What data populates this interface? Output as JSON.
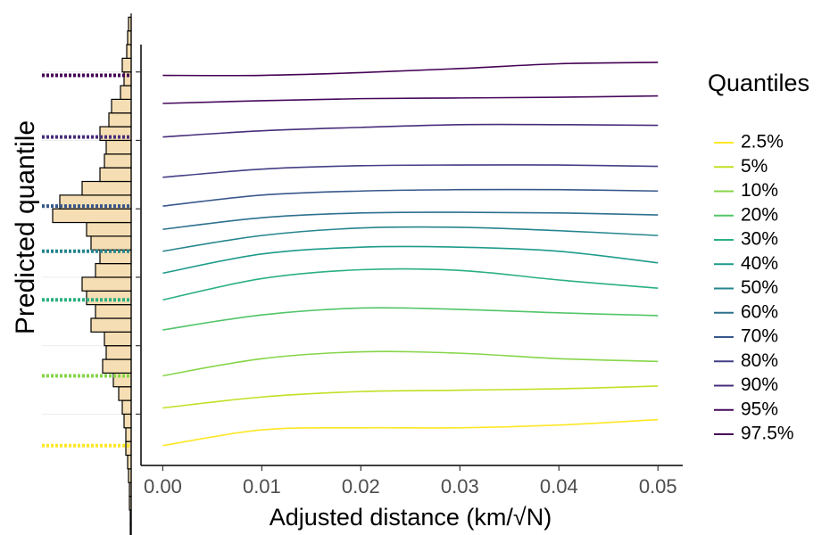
{
  "chart_data": {
    "type": "line",
    "y_axis_label": "Predicted quantile",
    "x_axis_label": "Adjusted distance  (km/√N)",
    "legend_title": "Quantiles",
    "legend": "right",
    "x": [
      0,
      0.01,
      0.02,
      0.03,
      0.04,
      0.05
    ],
    "xlim": [
      -0.0022,
      0.0525
    ],
    "xticks": [
      {
        "value": 0,
        "label": "0.00"
      },
      0.01,
      0.02,
      0.03,
      0.04,
      0.05
    ],
    "ylim": [
      -0.75,
      5.4
    ],
    "yticks": [
      0,
      1,
      2,
      3,
      4,
      5
    ],
    "series": [
      {
        "name": "2.5%",
        "color": "#fde725",
        "marginal_line": true,
        "values": [
          -0.46,
          -0.23,
          -0.2,
          -0.2,
          -0.16,
          -0.08
        ]
      },
      {
        "name": "5%",
        "color": "#c2df23",
        "values": [
          0.09,
          0.25,
          0.33,
          0.35,
          0.37,
          0.41
        ]
      },
      {
        "name": "10%",
        "color": "#86d549",
        "marginal_line": true,
        "values": [
          0.56,
          0.81,
          0.91,
          0.89,
          0.81,
          0.77
        ]
      },
      {
        "name": "20%",
        "color": "#52c569",
        "values": [
          1.23,
          1.45,
          1.55,
          1.53,
          1.48,
          1.44
        ]
      },
      {
        "name": "30%",
        "color": "#2ab07f",
        "marginal_line": true,
        "values": [
          1.67,
          1.98,
          2.11,
          2.1,
          1.96,
          1.84
        ]
      },
      {
        "name": "40%",
        "color": "#1e9b8a",
        "values": [
          2.06,
          2.34,
          2.44,
          2.44,
          2.38,
          2.21
        ]
      },
      {
        "name": "50%",
        "color": "#25858e",
        "marginal_line": true,
        "values": [
          2.38,
          2.61,
          2.72,
          2.73,
          2.68,
          2.61
        ]
      },
      {
        "name": "60%",
        "color": "#2d708e",
        "values": [
          2.7,
          2.87,
          2.94,
          2.95,
          2.94,
          2.91
        ]
      },
      {
        "name": "70%",
        "color": "#38588c",
        "marginal_line": true,
        "values": [
          3.04,
          3.2,
          3.26,
          3.28,
          3.28,
          3.26
        ]
      },
      {
        "name": "80%",
        "color": "#433e85",
        "values": [
          3.46,
          3.58,
          3.63,
          3.64,
          3.64,
          3.62
        ]
      },
      {
        "name": "90%",
        "color": "#472d7b",
        "marginal_line": true,
        "values": [
          4.05,
          4.14,
          4.19,
          4.23,
          4.23,
          4.22
        ]
      },
      {
        "name": "95%",
        "color": "#46085c",
        "values": [
          4.54,
          4.58,
          4.61,
          4.62,
          4.63,
          4.65
        ]
      },
      {
        "name": "97.5%",
        "color": "#440154",
        "marginal_line": true,
        "values": [
          4.95,
          4.95,
          4.99,
          5.05,
          5.12,
          5.14
        ]
      }
    ],
    "marginal_histogram": {
      "bins": [
        -1.8,
        -1.6,
        -1.4,
        -1.2,
        -1.0,
        -0.8,
        -0.6,
        -0.4,
        -0.2,
        0,
        0.2,
        0.4,
        0.6,
        0.8,
        1.0,
        1.2,
        1.4,
        1.6,
        1.8,
        2.0,
        2.2,
        2.4,
        2.6,
        2.8,
        3.0,
        3.2,
        3.4,
        3.6,
        3.8,
        4.0,
        4.2,
        4.4,
        4.6,
        4.8,
        5.0,
        5.2,
        5.4,
        5.6,
        5.8
      ],
      "counts": [
        1,
        1,
        2,
        2,
        3,
        4,
        6,
        6,
        8,
        10,
        14,
        20,
        32,
        28,
        30,
        45,
        40,
        50,
        55,
        40,
        35,
        45,
        50,
        88,
        80,
        55,
        35,
        30,
        28,
        35,
        25,
        22,
        12,
        8,
        10,
        5,
        4,
        3
      ],
      "xlim": [
        0,
        100
      ],
      "color": "#f5deb3"
    }
  }
}
